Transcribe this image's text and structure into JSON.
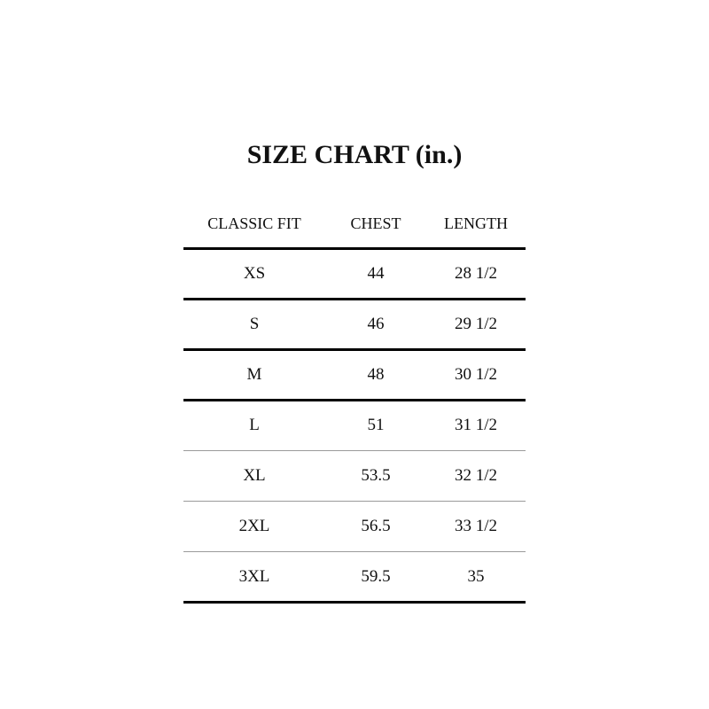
{
  "title": "SIZE CHART (in.)",
  "table": {
    "headers": [
      "CLASSIC FIT",
      "CHEST",
      "LENGTH"
    ],
    "rows": [
      [
        "XS",
        "44",
        "28 1/2"
      ],
      [
        "S",
        "46",
        "29 1/2"
      ],
      [
        "M",
        "48",
        "30 1/2"
      ],
      [
        "L",
        "51",
        "31 1/2"
      ],
      [
        "XL",
        "53.5",
        "32 1/2"
      ],
      [
        "2XL",
        "56.5",
        "33 1/2"
      ],
      [
        "3XL",
        "59.5",
        "35"
      ]
    ]
  }
}
